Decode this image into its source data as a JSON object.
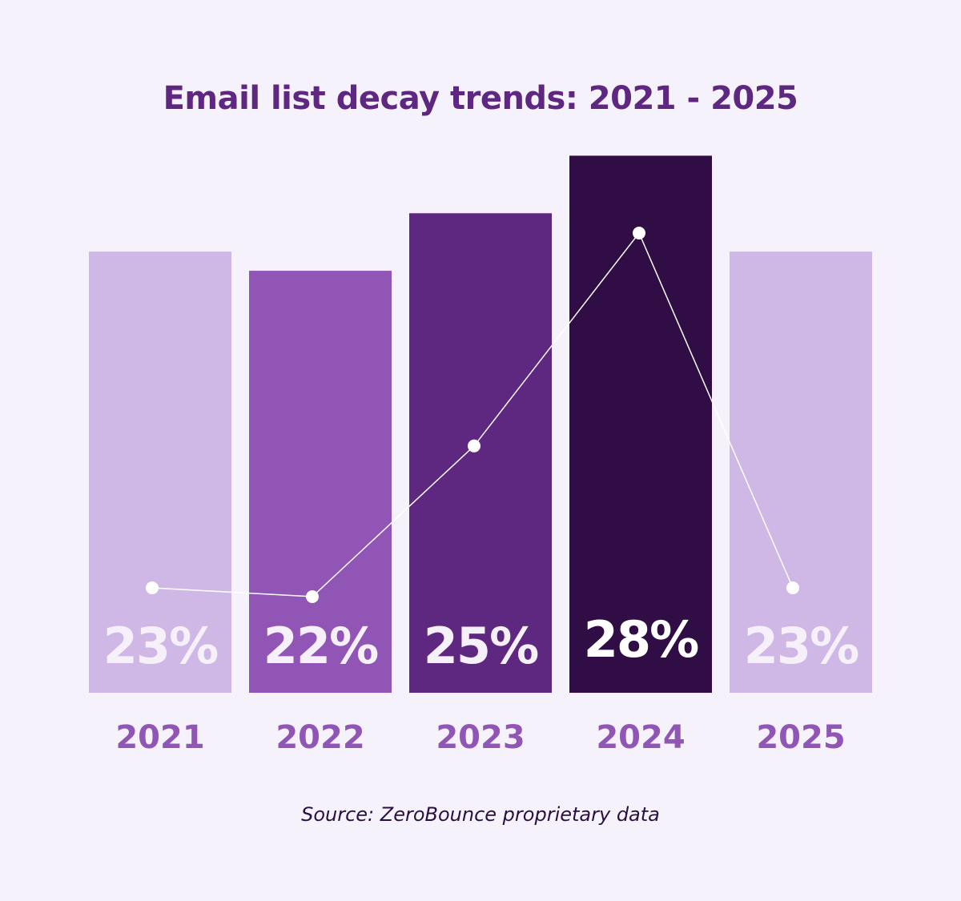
{
  "chart_data": {
    "type": "bar",
    "title": "Email list decay trends: 2021 - 2025",
    "categories": [
      "2021",
      "2022",
      "2023",
      "2024",
      "2025"
    ],
    "values": [
      23,
      22,
      25,
      28,
      23
    ],
    "value_labels": [
      "23%",
      "22%",
      "25%",
      "28%",
      "23%"
    ],
    "unit": "%",
    "overlay_line": true,
    "bar_colors": [
      "#cfb8e6",
      "#9155b5",
      "#5e2780",
      "#300d45",
      "#cfb8e6"
    ],
    "label_color": "#9155b5",
    "grid": false,
    "xlabel": "",
    "ylabel": "",
    "ylim": [
      0,
      28
    ]
  },
  "source": "Source: ZeroBounce proprietary data",
  "colors": {
    "background": "#f6f2fc",
    "title": "#5e2780",
    "line": "#ffffff"
  }
}
